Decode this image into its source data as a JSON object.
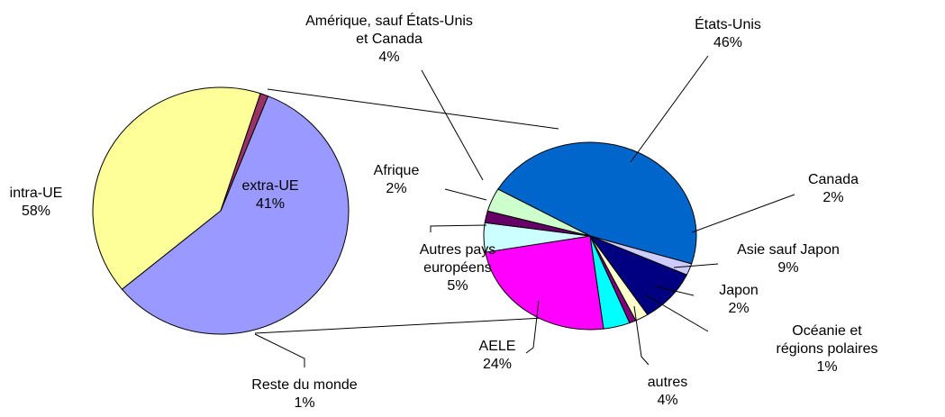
{
  "chart_data": [
    {
      "type": "pie",
      "categories": [
        "intra-UE",
        "extra-UE",
        "Reste du monde"
      ],
      "values": [
        58,
        41,
        1
      ],
      "value_labels": [
        "58%",
        "41%",
        "1%"
      ],
      "colors": [
        "#9999ff",
        "#ffff99",
        "#993366"
      ]
    },
    {
      "type": "pie",
      "categories": [
        "États-Unis",
        "Canada",
        "Asie sauf Japon",
        "Japon",
        "Océanie et régions polaires",
        "autres",
        "AELE",
        "Autres pays\neuropéens",
        "Afrique",
        "Amérique, sauf États-Unis\net Canada"
      ],
      "values": [
        46,
        2,
        9,
        2,
        1,
        4,
        24,
        5,
        2,
        4
      ],
      "value_labels": [
        "46%",
        "2%",
        "9%",
        "2%",
        "1%",
        "4%",
        "24%",
        "5%",
        "2%",
        "4%"
      ],
      "colors": [
        "#0066cc",
        "#ccccff",
        "#000080",
        "#ffffcc",
        "#800080",
        "#00ffff",
        "#ff00ff",
        "#ccffff",
        "#660066",
        "#ccffcc"
      ]
    }
  ]
}
